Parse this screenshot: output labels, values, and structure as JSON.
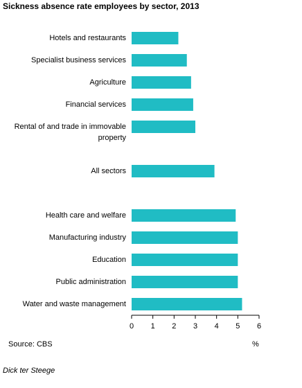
{
  "chart_data": {
    "type": "bar",
    "orientation": "horizontal",
    "title": "Sickness absence rate employees by sector, 2013",
    "categories": [
      "Hotels and restaurants",
      "Specialist business services",
      "Agriculture",
      "Financial services",
      "Rental of and trade in immovable property",
      null,
      "All sectors",
      null,
      "Health care and welfare",
      "Manufacturing industry",
      "Education",
      "Public administration",
      "Water and waste management"
    ],
    "values": [
      2.2,
      2.6,
      2.8,
      2.9,
      3.0,
      null,
      3.9,
      null,
      4.9,
      5.0,
      5.0,
      5.0,
      5.2
    ],
    "color": "#20bcc4",
    "xlim": [
      0,
      6
    ],
    "xticks": [
      0,
      1,
      2,
      3,
      4,
      5,
      6
    ],
    "x_label": "%",
    "source": "Source: CBS",
    "author": "Dick ter Steege"
  }
}
